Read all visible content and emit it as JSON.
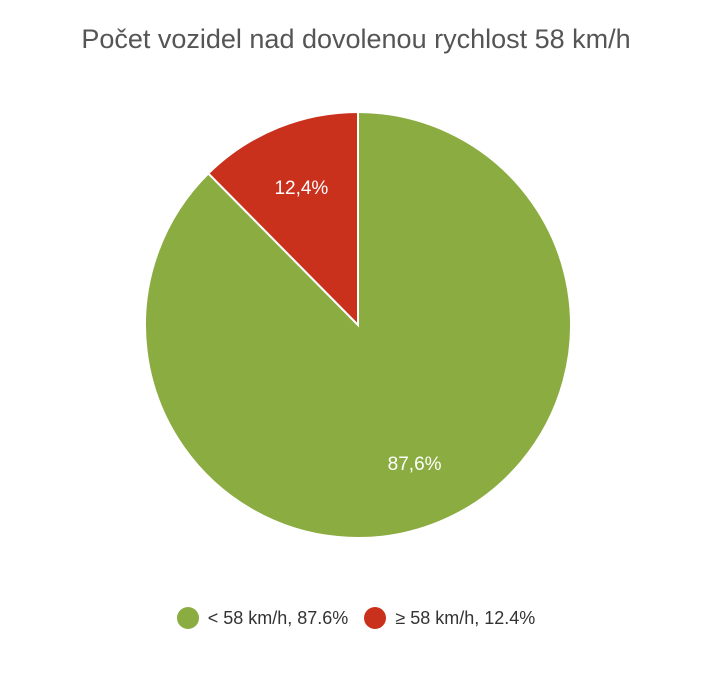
{
  "chart_data": {
    "type": "pie",
    "title": "Počet vozidel nad dovolenou rychlost 58 km/h",
    "slices": [
      {
        "label": "< 58 km/h",
        "value": 87.6,
        "data_label": "87,6%",
        "legend_label": "< 58 km/h, 87.6%",
        "color": "#8aac41"
      },
      {
        "label": "≥ 58 km/h",
        "value": 12.4,
        "data_label": "12,4%",
        "legend_label": "≥ 58 km/h, 12.4%",
        "color": "#c9311d"
      }
    ],
    "legend": "bottom-center"
  }
}
